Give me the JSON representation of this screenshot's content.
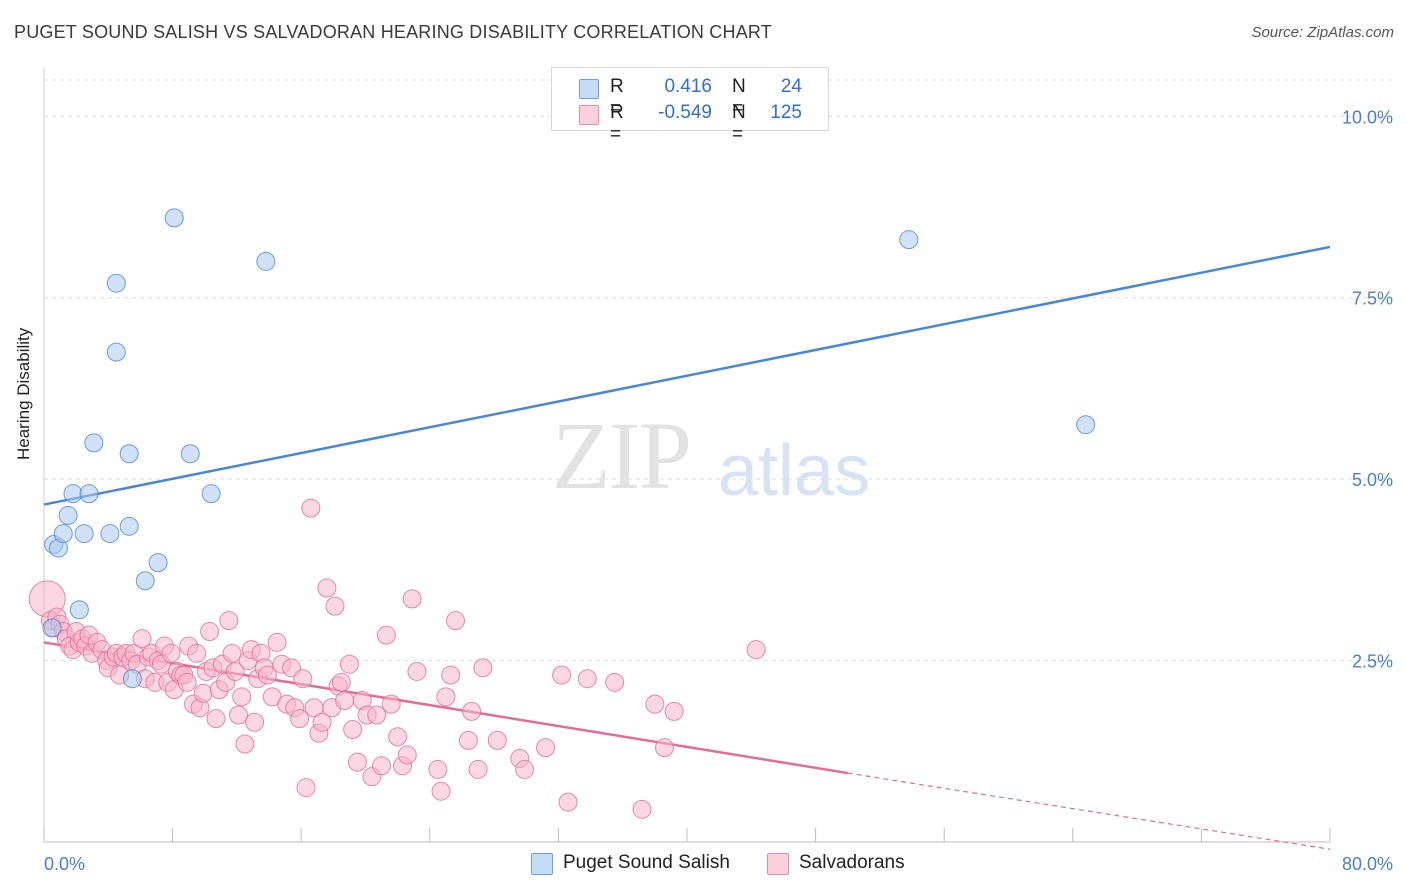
{
  "title": "PUGET SOUND SALISH VS SALVADORAN HEARING DISABILITY CORRELATION CHART",
  "source": "Source: ZipAtlas.com",
  "watermark": {
    "zip": "ZIP",
    "atlas": "atlas"
  },
  "legend": {
    "rows": [
      {
        "r_label": "R =",
        "r_value": "0.416",
        "n_label": "N =",
        "n_value": "24",
        "color": "#a9c8f2"
      },
      {
        "r_label": "R =",
        "r_value": "-0.549",
        "n_label": "N =",
        "n_value": "125",
        "color": "#f6b6ca"
      }
    ]
  },
  "bottom_legend": [
    {
      "label": "Puget Sound Salish",
      "color": "#a9c8f2"
    },
    {
      "label": "Salvadorans",
      "color": "#f6b6ca"
    }
  ],
  "chart_data": {
    "type": "scatter",
    "title": "PUGET SOUND SALISH VS SALVADORAN HEARING DISABILITY CORRELATION CHART",
    "ylabel": "Hearing Disability",
    "xlabel": "",
    "xlim": [
      0,
      80
    ],
    "ylim": [
      0,
      10.5
    ],
    "x_tick_labels": [
      "0.0%",
      "80.0%"
    ],
    "y_ticks": [
      2.5,
      5.0,
      7.5,
      10.0
    ],
    "y_tick_labels": [
      "2.5%",
      "5.0%",
      "7.5%",
      "10.0%"
    ],
    "grid": "horizontal dashed",
    "legend_position": "top-center",
    "series": [
      {
        "name": "Puget Sound Salish",
        "color": "#4a86d8",
        "fill": "#a9c8f2",
        "trend": {
          "x0": 0,
          "y0": 4.65,
          "x1": 80,
          "y1": 8.2,
          "dashed_from": null
        },
        "points": [
          [
            0.5,
            2.95
          ],
          [
            0.6,
            4.1
          ],
          [
            0.9,
            4.05
          ],
          [
            1.2,
            4.25
          ],
          [
            1.5,
            4.5
          ],
          [
            1.8,
            4.8
          ],
          [
            2.2,
            3.2
          ],
          [
            2.5,
            4.25
          ],
          [
            2.8,
            4.8
          ],
          [
            3.1,
            5.5
          ],
          [
            4.1,
            4.25
          ],
          [
            4.5,
            6.75
          ],
          [
            4.5,
            7.7
          ],
          [
            5.3,
            5.35
          ],
          [
            5.3,
            4.35
          ],
          [
            5.5,
            2.25
          ],
          [
            6.3,
            3.6
          ],
          [
            7.1,
            3.85
          ],
          [
            8.1,
            8.6
          ],
          [
            9.1,
            5.35
          ],
          [
            10.4,
            4.8
          ],
          [
            13.8,
            8.0
          ],
          [
            53.8,
            8.3
          ],
          [
            64.8,
            5.75
          ]
        ]
      },
      {
        "name": "Salvadorans",
        "color": "#e56b97",
        "fill": "#f6b6ca",
        "trend": {
          "x0": 0,
          "y0": 2.75,
          "x1": 50,
          "y1": 0.95,
          "dash_to_x": 80,
          "dash_to_y": -0.1
        },
        "points": [
          [
            0.2,
            3.35
          ],
          [
            0.4,
            3.05
          ],
          [
            0.6,
            2.95
          ],
          [
            0.8,
            3.1
          ],
          [
            1.0,
            3.0
          ],
          [
            1.2,
            2.9
          ],
          [
            1.4,
            2.8
          ],
          [
            1.6,
            2.7
          ],
          [
            1.8,
            2.65
          ],
          [
            2.0,
            2.9
          ],
          [
            2.2,
            2.75
          ],
          [
            2.4,
            2.8
          ],
          [
            2.6,
            2.7
          ],
          [
            2.8,
            2.85
          ],
          [
            3.0,
            2.6
          ],
          [
            3.3,
            2.75
          ],
          [
            3.6,
            2.65
          ],
          [
            3.9,
            2.5
          ],
          [
            4.0,
            2.4
          ],
          [
            4.3,
            2.55
          ],
          [
            4.5,
            2.6
          ],
          [
            4.7,
            2.3
          ],
          [
            4.9,
            2.55
          ],
          [
            5.1,
            2.6
          ],
          [
            5.4,
            2.5
          ],
          [
            5.6,
            2.6
          ],
          [
            5.8,
            2.45
          ],
          [
            6.1,
            2.8
          ],
          [
            6.3,
            2.25
          ],
          [
            6.5,
            2.55
          ],
          [
            6.7,
            2.6
          ],
          [
            6.9,
            2.2
          ],
          [
            7.1,
            2.5
          ],
          [
            7.3,
            2.45
          ],
          [
            7.5,
            2.7
          ],
          [
            7.7,
            2.2
          ],
          [
            7.9,
            2.6
          ],
          [
            8.1,
            2.1
          ],
          [
            8.3,
            2.35
          ],
          [
            8.5,
            2.3
          ],
          [
            8.7,
            2.3
          ],
          [
            8.9,
            2.2
          ],
          [
            9.0,
            2.7
          ],
          [
            9.3,
            1.9
          ],
          [
            9.5,
            2.6
          ],
          [
            9.7,
            1.85
          ],
          [
            9.9,
            2.05
          ],
          [
            10.1,
            2.35
          ],
          [
            10.3,
            2.9
          ],
          [
            10.5,
            2.4
          ],
          [
            10.7,
            1.7
          ],
          [
            10.9,
            2.1
          ],
          [
            11.1,
            2.45
          ],
          [
            11.3,
            2.2
          ],
          [
            11.5,
            3.05
          ],
          [
            11.7,
            2.6
          ],
          [
            11.9,
            2.35
          ],
          [
            12.1,
            1.75
          ],
          [
            12.3,
            2.0
          ],
          [
            12.5,
            1.35
          ],
          [
            12.7,
            2.5
          ],
          [
            12.9,
            2.65
          ],
          [
            13.1,
            1.65
          ],
          [
            13.3,
            2.25
          ],
          [
            13.5,
            2.6
          ],
          [
            13.7,
            2.4
          ],
          [
            13.9,
            2.3
          ],
          [
            14.2,
            2.0
          ],
          [
            14.5,
            2.75
          ],
          [
            14.8,
            2.45
          ],
          [
            15.1,
            1.9
          ],
          [
            15.4,
            2.4
          ],
          [
            15.6,
            1.85
          ],
          [
            15.9,
            1.7
          ],
          [
            16.1,
            2.25
          ],
          [
            16.3,
            0.75
          ],
          [
            16.8,
            1.85
          ],
          [
            17.1,
            1.5
          ],
          [
            17.3,
            1.65
          ],
          [
            17.6,
            3.5
          ],
          [
            17.9,
            1.85
          ],
          [
            18.1,
            3.25
          ],
          [
            18.3,
            2.15
          ],
          [
            18.5,
            2.2
          ],
          [
            18.7,
            1.95
          ],
          [
            19.0,
            2.45
          ],
          [
            19.2,
            1.55
          ],
          [
            19.5,
            1.1
          ],
          [
            19.8,
            1.95
          ],
          [
            20.1,
            1.75
          ],
          [
            20.4,
            0.9
          ],
          [
            20.7,
            1.75
          ],
          [
            21.0,
            1.05
          ],
          [
            21.3,
            2.85
          ],
          [
            21.6,
            1.9
          ],
          [
            22.0,
            1.45
          ],
          [
            22.3,
            1.05
          ],
          [
            22.6,
            1.2
          ],
          [
            22.9,
            3.35
          ],
          [
            23.2,
            2.35
          ],
          [
            24.5,
            1.0
          ],
          [
            24.7,
            0.7
          ],
          [
            25.0,
            2.0
          ],
          [
            25.3,
            2.3
          ],
          [
            25.6,
            3.05
          ],
          [
            26.4,
            1.4
          ],
          [
            26.6,
            1.8
          ],
          [
            27.0,
            1.0
          ],
          [
            27.3,
            2.4
          ],
          [
            28.2,
            1.4
          ],
          [
            29.6,
            1.15
          ],
          [
            29.9,
            1.0
          ],
          [
            31.2,
            1.3
          ],
          [
            32.2,
            2.3
          ],
          [
            32.6,
            0.55
          ],
          [
            33.8,
            2.25
          ],
          [
            35.5,
            2.2
          ],
          [
            37.2,
            0.45
          ],
          [
            38.0,
            1.9
          ],
          [
            38.6,
            1.3
          ],
          [
            39.2,
            1.8
          ],
          [
            44.3,
            2.65
          ],
          [
            16.6,
            4.6
          ]
        ]
      }
    ]
  }
}
